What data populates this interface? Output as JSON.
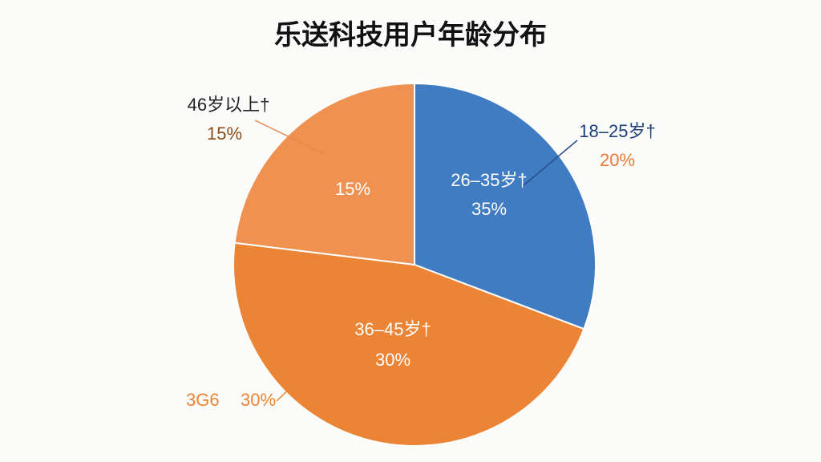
{
  "chart_data": {
    "type": "pie",
    "title": "乐送科技用户年龄分布",
    "categories": [
      "18–25岁†",
      "3G6",
      "46岁以上†"
    ],
    "values": [
      20,
      30,
      15
    ],
    "value_labels": [
      "20%",
      "30%",
      "15%"
    ],
    "colors": [
      "#3f7cc2",
      "#ec8435",
      "#ef9150"
    ],
    "annotations": [
      "26–35岁†",
      "35%",
      "36–45岁†",
      "30%",
      "15%"
    ]
  }
}
